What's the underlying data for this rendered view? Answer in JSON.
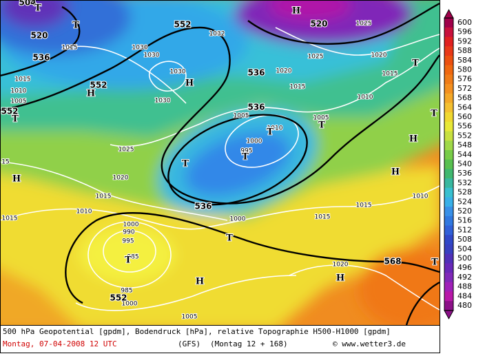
{
  "map": {
    "geopotential_labels": [
      "552",
      "552",
      "552",
      "536",
      "520",
      "536",
      "536",
      "536",
      "552",
      "568",
      "520",
      "504"
    ],
    "pressure_labels": [
      "1015",
      "1030",
      "1030",
      "1030",
      "1030",
      "1032",
      "1025",
      "1020",
      "1015",
      "1020",
      "1015",
      "1010",
      "1025",
      "1005",
      "1005",
      "1010",
      "1000",
      "995",
      "1025",
      "1020",
      "1015",
      "1010",
      "1000",
      "1000",
      "990",
      "995",
      "985",
      "985",
      "1000",
      "1005",
      "1015",
      "1015",
      "1010",
      "1020",
      "1015",
      "1015",
      "1010",
      "1005",
      "15"
    ],
    "markers": [
      "T",
      "T",
      "H",
      "H",
      "H",
      "T",
      "T",
      "T",
      "T",
      "T",
      "T",
      "T",
      "H",
      "H",
      "H",
      "T",
      "T",
      "H",
      "H",
      "T"
    ]
  },
  "legend": {
    "values": [
      600,
      596,
      592,
      588,
      584,
      580,
      576,
      572,
      568,
      564,
      560,
      556,
      552,
      548,
      544,
      540,
      536,
      532,
      528,
      524,
      520,
      516,
      512,
      508,
      504,
      500,
      496,
      492,
      488,
      484,
      480
    ],
    "colors": [
      "#a0004a",
      "#c8103c",
      "#e02020",
      "#e83818",
      "#ec5010",
      "#f06810",
      "#f07c18",
      "#f49020",
      "#f4a828",
      "#f4c030",
      "#f0d830",
      "#e8e838",
      "#c8e040",
      "#a0d848",
      "#78cc48",
      "#58c050",
      "#40b870",
      "#38b8a0",
      "#38c0d0",
      "#38b0e8",
      "#3890e8",
      "#3078e0",
      "#3060d8",
      "#3048c8",
      "#3840c0",
      "#5030b8",
      "#6828b8",
      "#8028b8",
      "#a020b8",
      "#b818a8",
      "#8c1088"
    ]
  },
  "footer": {
    "line1": "500 hPa Geopotential [gpdm], Bodendruck [hPa], relative Topographie H500-H1000 [gpdm]",
    "date": "Montag, 07-04-2008  12 UTC",
    "model": "(GFS)",
    "run": "(Montag 12 + 168)",
    "site": "© www.wetter3.de"
  }
}
